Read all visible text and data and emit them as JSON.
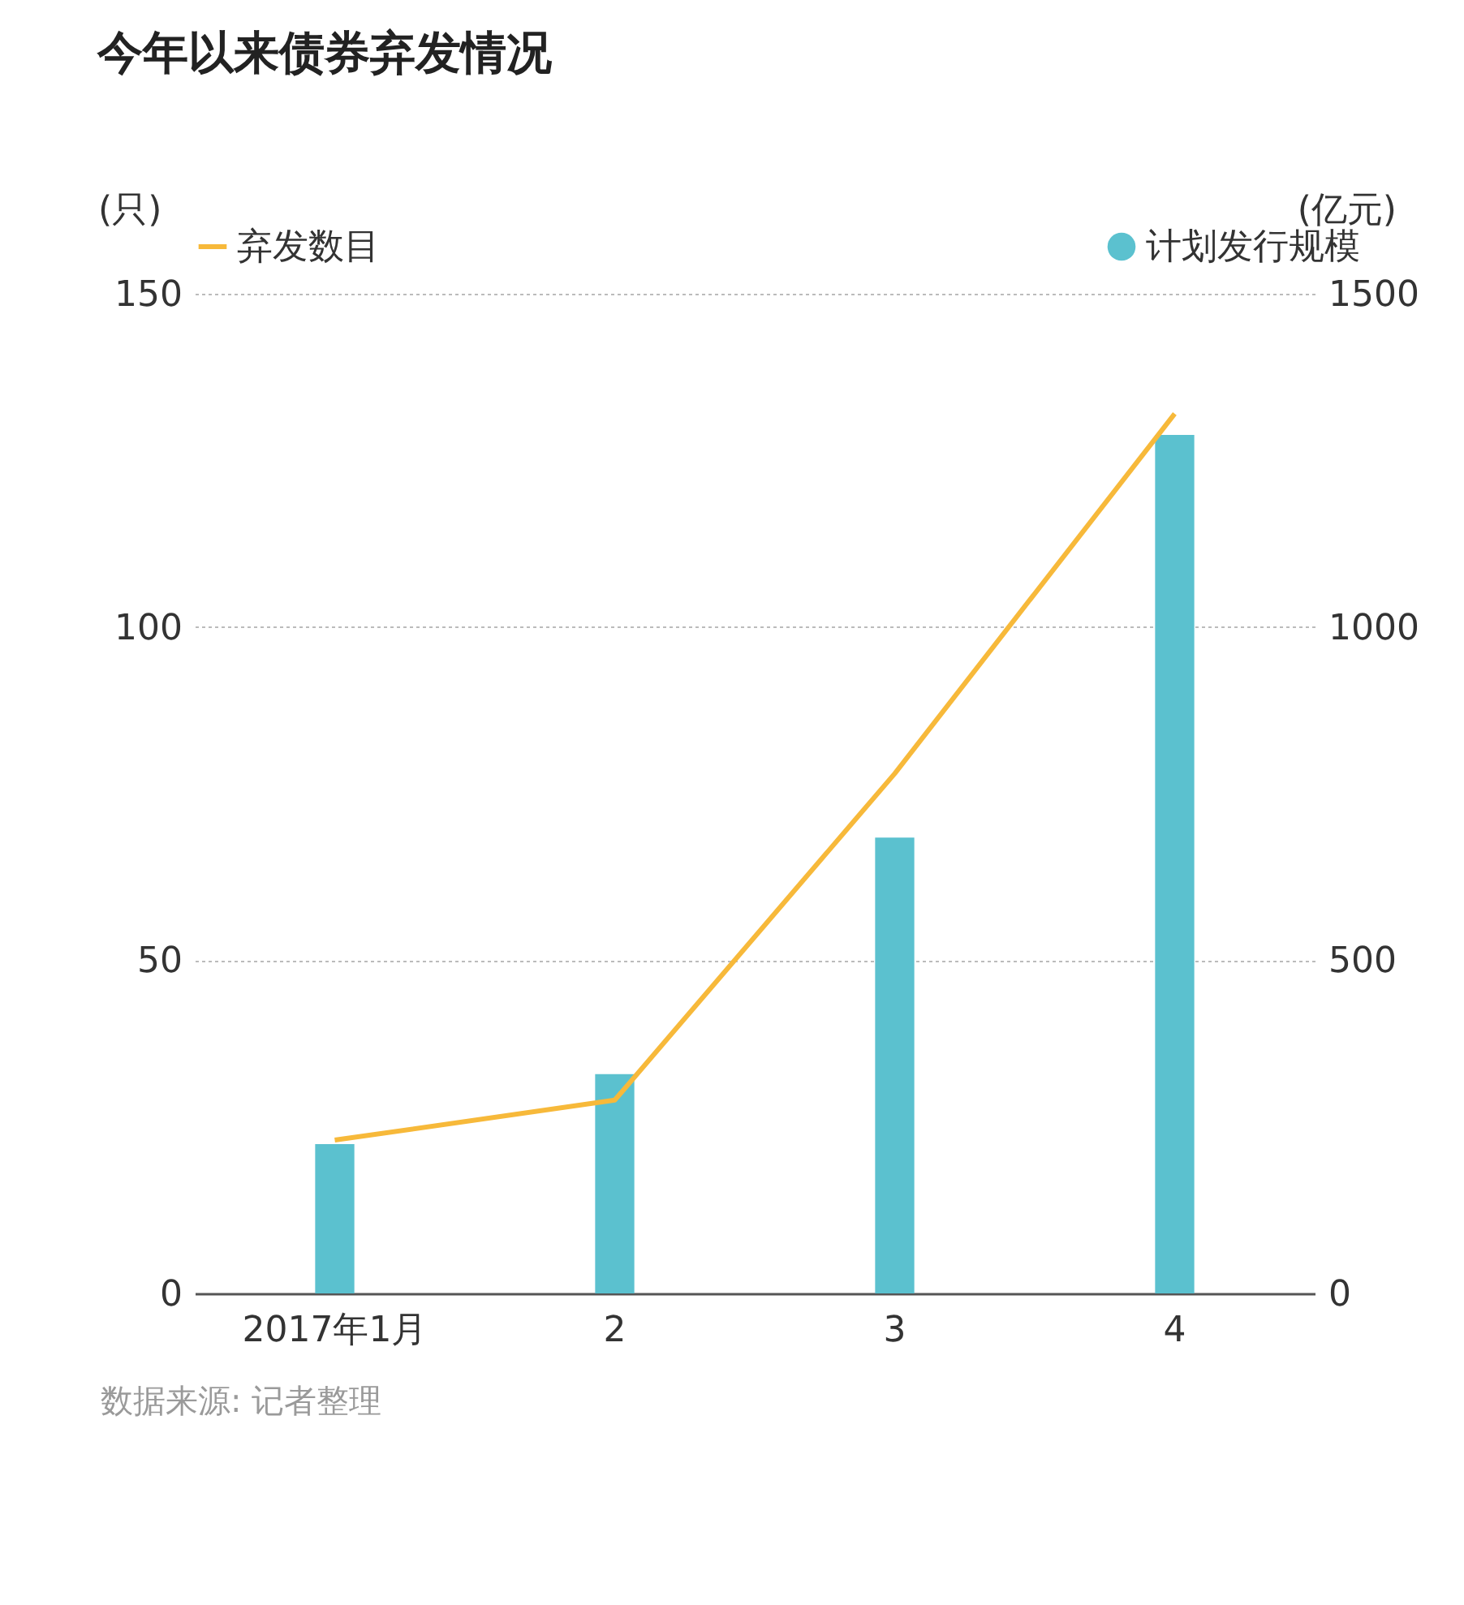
{
  "chart_data": {
    "type": "bar",
    "title": "今年以来债券弃发情况",
    "ylabel": "(只)",
    "y2label": "(亿元)",
    "categories": [
      "2017年1月",
      "2",
      "3",
      "4"
    ],
    "series": [
      {
        "name": "计划发行规模",
        "axis": "y2",
        "color": "#5bc1cf",
        "values": [
          224,
          329,
          684,
          1288
        ]
      },
      {
        "name": "弃发数目",
        "type": "line",
        "color": "#f7b93a",
        "values": [
          23,
          29,
          78,
          132
        ]
      }
    ],
    "ylim": [
      0,
      150
    ],
    "yticks": [
      0,
      50,
      100,
      150
    ],
    "y2lim": [
      0,
      1500
    ],
    "y2ticks": [
      0,
      500,
      1000,
      1500
    ],
    "grid": "y",
    "legend": "top",
    "marker": "none",
    "annotations": [
      "数据来源: 记者整理"
    ]
  }
}
